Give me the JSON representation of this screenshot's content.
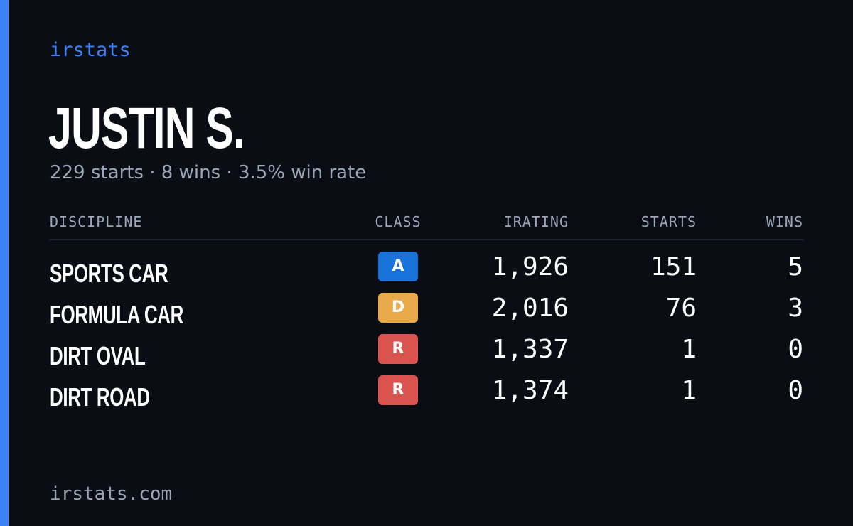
{
  "brand": "irstats",
  "player": {
    "name": "JUSTIN S.",
    "starts_summary": "229 starts",
    "wins_summary": "8 wins",
    "win_rate_summary": "3.5% win rate",
    "separator": "·"
  },
  "table": {
    "headers": {
      "discipline": "DISCIPLINE",
      "class": "CLASS",
      "irating": "IRATING",
      "starts": "STARTS",
      "wins": "WINS"
    },
    "rows": [
      {
        "discipline": "SPORTS CAR",
        "class": "A",
        "class_color": "#1a73d9",
        "irating": "1,926",
        "starts": "151",
        "wins": "5"
      },
      {
        "discipline": "FORMULA CAR",
        "class": "D",
        "class_color": "#e8a94a",
        "irating": "2,016",
        "starts": "76",
        "wins": "3"
      },
      {
        "discipline": "DIRT OVAL",
        "class": "R",
        "class_color": "#d9534f",
        "irating": "1,337",
        "starts": "1",
        "wins": "0"
      },
      {
        "discipline": "DIRT ROAD",
        "class": "R",
        "class_color": "#d9534f",
        "irating": "1,374",
        "starts": "1",
        "wins": "0"
      }
    ]
  },
  "footer": "irstats.com",
  "colors": {
    "background": "#0a0d14",
    "accent": "#3b82f6",
    "muted_text": "#9aa5b8",
    "primary_text": "#ffffff"
  }
}
